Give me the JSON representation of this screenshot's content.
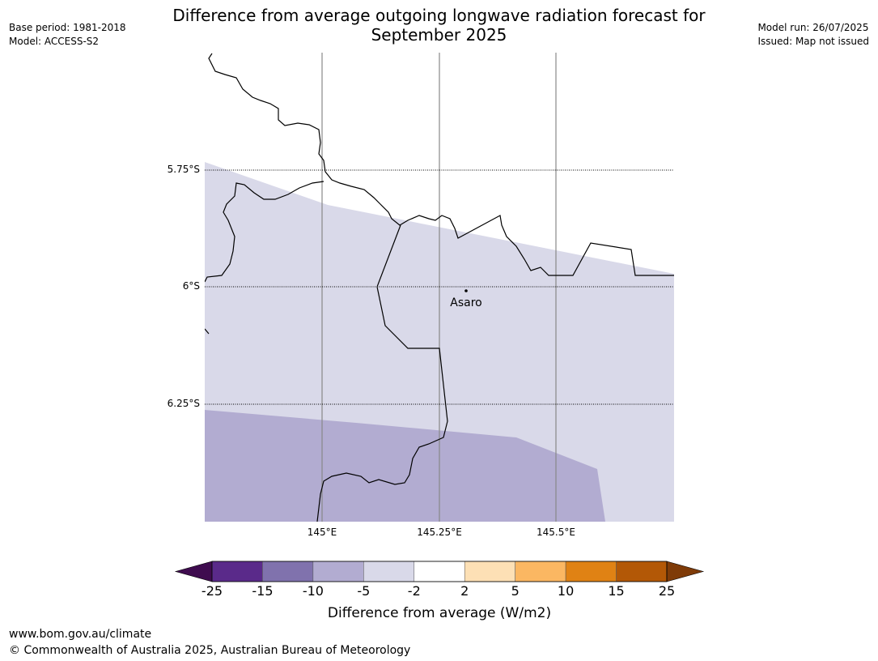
{
  "header": {
    "title_line1": "Difference from average outgoing longwave radiation forecast for",
    "title_line2": "September 2025",
    "base_period": "Base period: 1981-2018",
    "model": "Model: ACCESS-S2",
    "model_run": "Model run: 26/07/2025",
    "issued": "Issued: Map not issued"
  },
  "map": {
    "lat_labels": [
      "5.75°S",
      "6°S",
      "6.25°S"
    ],
    "lon_labels": [
      "145°E",
      "145.25°E",
      "145.5°E"
    ],
    "place_label": "Asaro",
    "categories_shown": [
      {
        "range": "-5 to -2",
        "color": "#d9d9e9"
      },
      {
        "range": "-10 to -5",
        "color": "#b2acd1"
      }
    ]
  },
  "colorbar": {
    "ticks": [
      "-25",
      "-15",
      "-10",
      "-5",
      "-2",
      "2",
      "5",
      "10",
      "15",
      "25"
    ],
    "colors": [
      "#5a2a8a",
      "#8072ad",
      "#b2acd1",
      "#d9d9e9",
      "#ffffff",
      "#fde0b5",
      "#fbb762",
      "#e08214",
      "#b35806"
    ],
    "extend_low_color": "#3f0c4f",
    "extend_high_color": "#7f3b08",
    "label": "Difference from average (W/m2)"
  },
  "footer": {
    "url": "www.bom.gov.au/climate",
    "copyright": "© Commonwealth of Australia 2025, Australian Bureau of Meteorology"
  }
}
